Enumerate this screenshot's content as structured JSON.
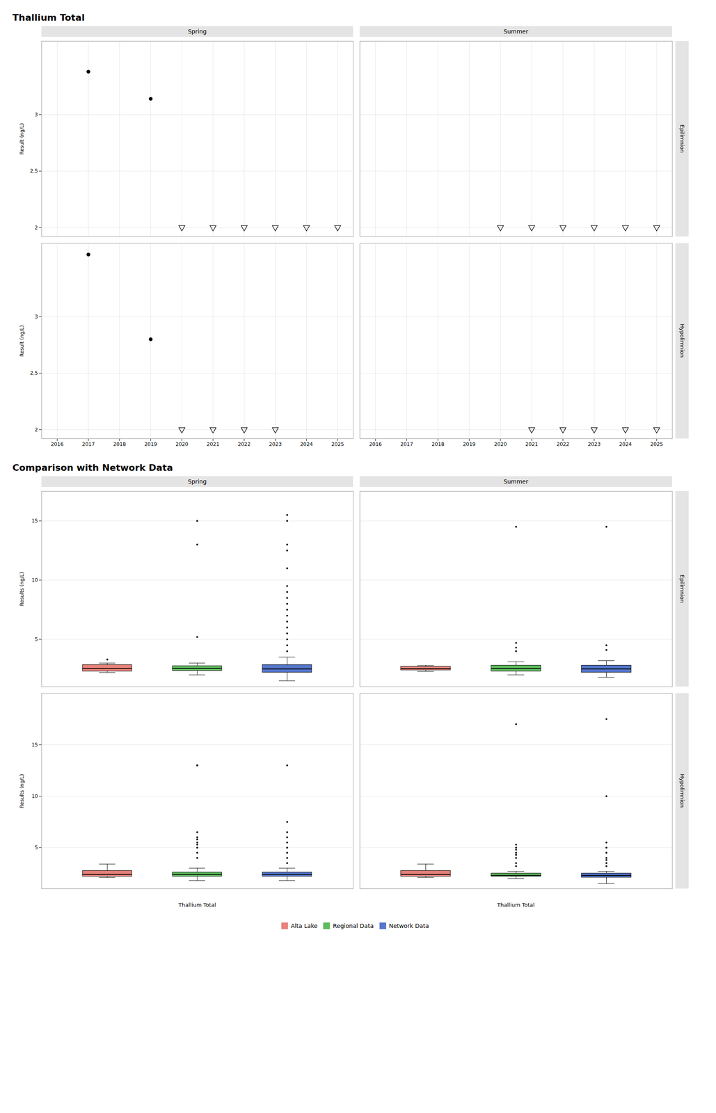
{
  "chart_data": [
    {
      "type": "scatter",
      "title": "Thallium Total",
      "y_label": "Result (ng/L)",
      "xlim": [
        2015.5,
        2025.5
      ],
      "xticks": [
        2016,
        2017,
        2018,
        2019,
        2020,
        2021,
        2022,
        2023,
        2024,
        2025
      ],
      "ylim": [
        1.92,
        3.65
      ],
      "yticks": [
        2.0,
        2.5,
        3.0
      ],
      "grid": true,
      "columns": [
        "Spring",
        "Summer"
      ],
      "rows": [
        "Epilimnion",
        "Hypolimnion"
      ],
      "panels": [
        {
          "column": "Spring",
          "row": "Epilimnion",
          "series": [
            {
              "marker": "circle",
              "x": [
                2017,
                2019
              ],
              "values": [
                3.38,
                3.14
              ]
            },
            {
              "marker": "triangle_down",
              "x": [
                2020,
                2021,
                2022,
                2023,
                2024,
                2025
              ],
              "values": [
                2.0,
                2.0,
                2.0,
                2.0,
                2.0,
                2.0
              ]
            }
          ]
        },
        {
          "column": "Summer",
          "row": "Epilimnion",
          "series": [
            {
              "marker": "triangle_down",
              "x": [
                2020,
                2021,
                2022,
                2023,
                2024,
                2025
              ],
              "values": [
                2.0,
                2.0,
                2.0,
                2.0,
                2.0,
                2.0
              ]
            }
          ]
        },
        {
          "column": "Spring",
          "row": "Hypolimnion",
          "series": [
            {
              "marker": "circle",
              "x": [
                2017,
                2019
              ],
              "values": [
                3.55,
                2.8
              ]
            },
            {
              "marker": "triangle_down",
              "x": [
                2020,
                2021,
                2022,
                2023
              ],
              "values": [
                2.0,
                2.0,
                2.0,
                2.0
              ]
            }
          ]
        },
        {
          "column": "Summer",
          "row": "Hypolimnion",
          "series": [
            {
              "marker": "triangle_down",
              "x": [
                2021,
                2022,
                2023,
                2024,
                2025
              ],
              "values": [
                2.0,
                2.0,
                2.0,
                2.0,
                2.0
              ]
            }
          ]
        }
      ]
    },
    {
      "type": "box",
      "title": "Comparison with Network Data",
      "y_label": "Results (ng/L)",
      "x_label": "Thallium Total",
      "categories": [
        "Alta Lake",
        "Regional Data",
        "Network Data"
      ],
      "colors": [
        "#E8827A",
        "#5DBB5D",
        "#5577CC"
      ],
      "legend": "bottom",
      "grid": true,
      "tick_labels": "y",
      "columns": [
        "Spring",
        "Summer"
      ],
      "rows": [
        "Epilimnion",
        "Hypolimnion"
      ],
      "panels": [
        {
          "column": "Spring",
          "row": "Epilimnion",
          "ylim": [
            1.0,
            17.5
          ],
          "yticks": [
            5,
            10,
            15
          ],
          "boxes": [
            {
              "median": 2.55,
              "q1": 2.3,
              "q3": 2.85,
              "whisker_low": 2.2,
              "whisker_high": 3.0,
              "outliers": [
                3.3
              ]
            },
            {
              "median": 2.55,
              "q1": 2.35,
              "q3": 2.75,
              "whisker_low": 2.0,
              "whisker_high": 3.0,
              "outliers": [
                5.2,
                13.0,
                15.0
              ]
            },
            {
              "median": 2.5,
              "q1": 2.2,
              "q3": 2.85,
              "whisker_low": 1.5,
              "whisker_high": 3.5,
              "outliers": [
                4.0,
                4.5,
                5.0,
                5.5,
                6.0,
                6.5,
                7.0,
                7.5,
                8.0,
                8.5,
                9.0,
                9.5,
                11.0,
                12.5,
                13.0,
                15.0,
                15.5
              ]
            }
          ]
        },
        {
          "column": "Summer",
          "row": "Epilimnion",
          "ylim": [
            1.0,
            17.5
          ],
          "yticks": [
            5,
            10,
            15
          ],
          "boxes": [
            {
              "median": 2.55,
              "q1": 2.4,
              "q3": 2.7,
              "whisker_low": 2.3,
              "whisker_high": 2.8,
              "outliers": []
            },
            {
              "median": 2.55,
              "q1": 2.3,
              "q3": 2.8,
              "whisker_low": 2.0,
              "whisker_high": 3.1,
              "outliers": [
                4.0,
                4.3,
                4.7,
                14.5
              ]
            },
            {
              "median": 2.5,
              "q1": 2.2,
              "q3": 2.8,
              "whisker_low": 1.8,
              "whisker_high": 3.2,
              "outliers": [
                4.1,
                4.5,
                14.5
              ]
            }
          ]
        },
        {
          "column": "Spring",
          "row": "Hypolimnion",
          "ylim": [
            1.0,
            20.0
          ],
          "yticks": [
            5,
            10,
            15
          ],
          "boxes": [
            {
              "median": 2.4,
              "q1": 2.2,
              "q3": 2.75,
              "whisker_low": 2.1,
              "whisker_high": 3.4,
              "outliers": []
            },
            {
              "median": 2.4,
              "q1": 2.2,
              "q3": 2.6,
              "whisker_low": 1.8,
              "whisker_high": 3.0,
              "outliers": [
                4.0,
                4.5,
                5.0,
                5.3,
                5.5,
                5.8,
                6.0,
                6.5,
                13.0,
                13.0
              ]
            },
            {
              "median": 2.4,
              "q1": 2.2,
              "q3": 2.6,
              "whisker_low": 1.8,
              "whisker_high": 3.0,
              "outliers": [
                3.5,
                4.0,
                4.5,
                5.0,
                5.5,
                6.0,
                6.5,
                7.5,
                13.0
              ]
            }
          ]
        },
        {
          "column": "Summer",
          "row": "Hypolimnion",
          "ylim": [
            1.0,
            20.0
          ],
          "yticks": [
            5,
            10,
            15
          ],
          "boxes": [
            {
              "median": 2.4,
              "q1": 2.2,
              "q3": 2.75,
              "whisker_low": 2.1,
              "whisker_high": 3.4,
              "outliers": []
            },
            {
              "median": 2.3,
              "q1": 2.2,
              "q3": 2.5,
              "whisker_low": 2.0,
              "whisker_high": 2.7,
              "outliers": [
                3.2,
                3.5,
                4.0,
                4.3,
                4.5,
                4.8,
                5.0,
                5.3,
                17.0
              ]
            },
            {
              "median": 2.3,
              "q1": 2.1,
              "q3": 2.5,
              "whisker_low": 1.5,
              "whisker_high": 2.7,
              "outliers": [
                3.2,
                3.5,
                3.8,
                4.0,
                4.5,
                5.0,
                5.5,
                10.0,
                17.5
              ]
            }
          ]
        }
      ]
    }
  ]
}
